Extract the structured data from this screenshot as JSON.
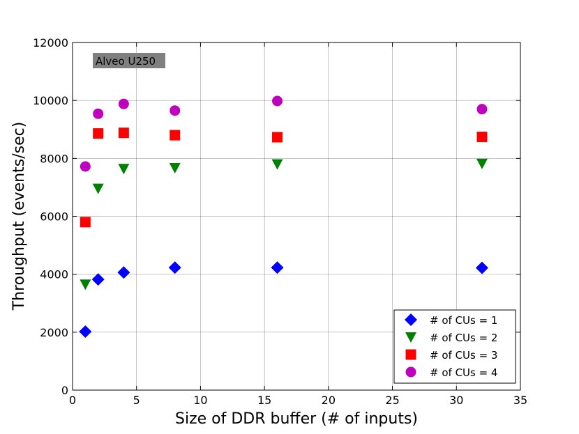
{
  "chart_data": {
    "type": "scatter",
    "title": "",
    "xlabel": "Size of DDR buffer (# of inputs)",
    "ylabel": "Throughput (events/sec)",
    "xlim": [
      0,
      35
    ],
    "ylim": [
      0,
      12000
    ],
    "x_ticks": [
      0,
      5,
      10,
      15,
      20,
      25,
      30,
      35
    ],
    "y_ticks": [
      0,
      2000,
      4000,
      6000,
      8000,
      10000,
      12000
    ],
    "grid": true,
    "legend_position": "lower-right",
    "annotation": "Alveo U250",
    "series": [
      {
        "name": "# of CUs = 1",
        "marker": "diamond",
        "color": "#0000ff",
        "x": [
          1,
          2,
          4,
          8,
          16,
          32
        ],
        "y": [
          2020,
          3820,
          4060,
          4230,
          4230,
          4220
        ]
      },
      {
        "name": "# of CUs = 2",
        "marker": "triangle-down",
        "color": "#008000",
        "x": [
          1,
          2,
          4,
          8,
          16,
          32
        ],
        "y": [
          3650,
          6960,
          7640,
          7670,
          7800,
          7820
        ]
      },
      {
        "name": "# of CUs = 3",
        "marker": "square",
        "color": "#ff0000",
        "x": [
          1,
          2,
          4,
          8,
          16,
          32
        ],
        "y": [
          5800,
          8860,
          8880,
          8800,
          8730,
          8740
        ]
      },
      {
        "name": "# of CUs = 4",
        "marker": "circle",
        "color": "#bf00bf",
        "x": [
          1,
          2,
          4,
          8,
          16,
          32
        ],
        "y": [
          7720,
          9540,
          9880,
          9650,
          9980,
          9700
        ]
      }
    ]
  }
}
